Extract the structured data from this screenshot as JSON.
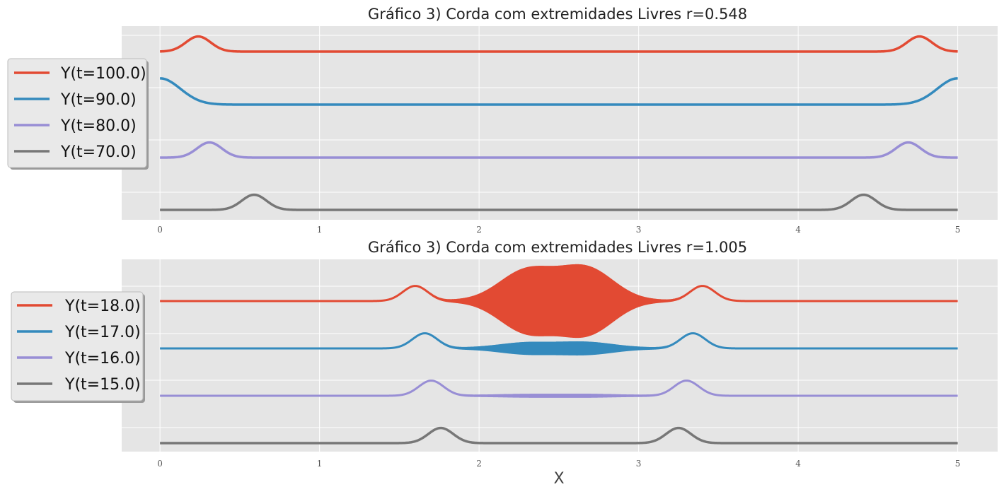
{
  "chart_data": [
    {
      "type": "line",
      "title": "Gráfico 3) Corda com extremidades Livres r=0.548",
      "xlabel": "",
      "ylabel": "",
      "xlim": [
        -0.24,
        5.25
      ],
      "xticks": [
        0,
        1,
        2,
        3,
        4,
        5
      ],
      "grid": true,
      "legend_position": "left-outside",
      "series": [
        {
          "name": "Y(t=100.0)",
          "color": "#E24A33",
          "baseline": 3,
          "pulses": [
            [
              0.24,
              0.055
            ],
            [
              4.76,
              0.055
            ]
          ],
          "bump_height": 0.34,
          "oscillation": 0
        },
        {
          "name": "Y(t=90.0)",
          "color": "#348ABD",
          "baseline": 2,
          "pulses": [
            [
              0.0,
              0.09
            ],
            [
              5.0,
              0.09
            ]
          ],
          "bump_height": 0.59,
          "oscillation": 0
        },
        {
          "name": "Y(t=80.0)",
          "color": "#988ED5",
          "baseline": 1,
          "pulses": [
            [
              0.31,
              0.055
            ],
            [
              4.69,
              0.055
            ]
          ],
          "bump_height": 0.34,
          "oscillation": 0
        },
        {
          "name": "Y(t=70.0)",
          "color": "#777777",
          "baseline": 0,
          "pulses": [
            [
              0.59,
              0.055
            ],
            [
              4.41,
              0.055
            ]
          ],
          "bump_height": 0.34,
          "oscillation": 0
        }
      ]
    },
    {
      "type": "line",
      "title": "Gráfico 3) Corda com extremidades Livres r=1.005",
      "xlabel": "X",
      "ylabel": "",
      "xlim": [
        -0.24,
        5.25
      ],
      "xticks": [
        0,
        1,
        2,
        3,
        4,
        5
      ],
      "grid": true,
      "legend_position": "left-outside",
      "series": [
        {
          "name": "Y(t=18.0)",
          "color": "#E24A33",
          "baseline": 3,
          "pulses": [
            [
              1.6,
              0.055
            ],
            [
              3.4,
              0.055
            ]
          ],
          "bump_height": 0.34,
          "oscillation": 0.72,
          "osc_centers": [
            2.3,
            2.67
          ],
          "osc_width": 0.17
        },
        {
          "name": "Y(t=17.0)",
          "color": "#348ABD",
          "baseline": 2,
          "pulses": [
            [
              1.66,
              0.055
            ],
            [
              3.34,
              0.055
            ]
          ],
          "bump_height": 0.34,
          "oscillation": 0.12,
          "osc_centers": [
            2.3,
            2.67
          ],
          "osc_width": 0.17
        },
        {
          "name": "Y(t=16.0)",
          "color": "#988ED5",
          "baseline": 1,
          "pulses": [
            [
              1.7,
              0.055
            ],
            [
              3.3,
              0.055
            ]
          ],
          "bump_height": 0.34,
          "oscillation": 0.02,
          "osc_centers": [
            2.3,
            2.67
          ],
          "osc_width": 0.17
        },
        {
          "name": "Y(t=15.0)",
          "color": "#777777",
          "baseline": 0,
          "pulses": [
            [
              1.76,
              0.055
            ],
            [
              3.25,
              0.055
            ]
          ],
          "bump_height": 0.34,
          "oscillation": 0
        }
      ]
    }
  ]
}
